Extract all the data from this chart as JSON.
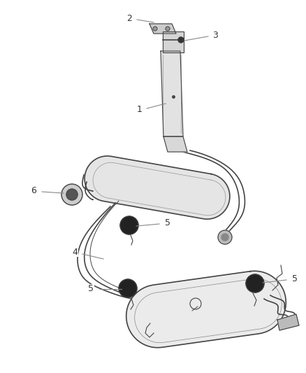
{
  "bg_color": "#ffffff",
  "line_color": "#444444",
  "dark_color": "#111111",
  "fill_light": "#e8e8e8",
  "fill_mid": "#d0d0d0",
  "label_line_color": "#888888",
  "label_fontsize": 9
}
